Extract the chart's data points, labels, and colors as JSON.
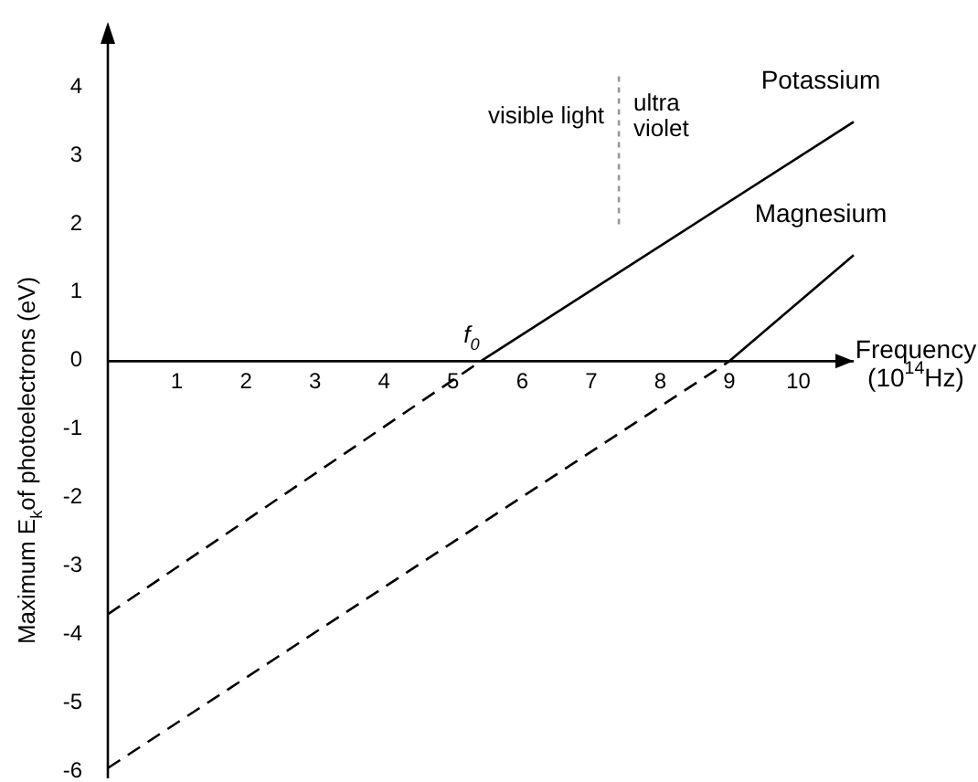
{
  "chart_data": {
    "type": "line",
    "xlabel": "Frequency\n(10$^{14}$Hz)",
    "ylabel": "Maximum E$_{k}$of photoelectrons (eV)",
    "xlim": [
      0,
      10.8
    ],
    "ylim": [
      -6.1,
      4.8
    ],
    "xticks": [
      1,
      2,
      3,
      4,
      5,
      6,
      7,
      8,
      9,
      10
    ],
    "yticks": [
      -6,
      -5,
      -4,
      -3,
      -2,
      -1,
      0,
      1,
      2,
      3,
      4
    ],
    "legend": false,
    "series": [
      {
        "name": "Potassium",
        "color": "#000000",
        "line_style": "solid",
        "x": [
          5.4,
          10.8
        ],
        "values": [
          0,
          3.5
        ]
      },
      {
        "color": "#000000",
        "line_style": "dashed",
        "x": [
          0,
          5.4
        ],
        "values": [
          -3.7,
          0
        ]
      },
      {
        "name": "Magnesium",
        "color": "#000000",
        "line_style": "solid",
        "x": [
          9,
          10.8
        ],
        "values": [
          0,
          1.55
        ]
      },
      {
        "color": "#000000",
        "line_style": "dashed",
        "x": [
          0,
          9
        ],
        "values": [
          -5.95,
          0
        ]
      },
      {
        "color": "#999999",
        "line_style": "dotted",
        "x": [
          7.4,
          7.4
        ],
        "values": [
          2,
          4.2
        ]
      }
    ],
    "annotations": [
      "visible light",
      "ultra\nviolet",
      {
        "text": "f$_{0}$",
        "x": 5.4,
        "y": 0
      }
    ]
  }
}
